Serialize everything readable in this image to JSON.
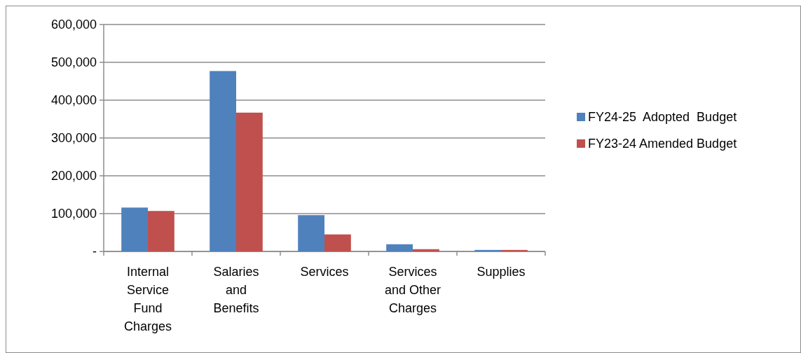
{
  "chart_data": {
    "type": "bar",
    "categories": [
      "Internal Service Fund Charges",
      "Salaries and Benefits",
      "Services",
      "Services and Other Charges",
      "Supplies"
    ],
    "series": [
      {
        "name": "FY24-25  Adopted  Budget",
        "color": "#4f81bd",
        "values": [
          116000,
          477000,
          96000,
          19000,
          4000
        ]
      },
      {
        "name": "FY23-24 Amended Budget",
        "color": "#c0504d",
        "values": [
          107000,
          367000,
          45000,
          6000,
          4000
        ]
      }
    ],
    "ylim": [
      0,
      600000
    ],
    "yticks": [
      {
        "value": 0,
        "label": "-"
      },
      {
        "value": 100000,
        "label": "100,000"
      },
      {
        "value": 200000,
        "label": "200,000"
      },
      {
        "value": 300000,
        "label": "300,000"
      },
      {
        "value": 400000,
        "label": "400,000"
      },
      {
        "value": 500000,
        "label": "500,000"
      },
      {
        "value": 600000,
        "label": "600,000"
      }
    ],
    "grid": "y",
    "legend": "right"
  }
}
